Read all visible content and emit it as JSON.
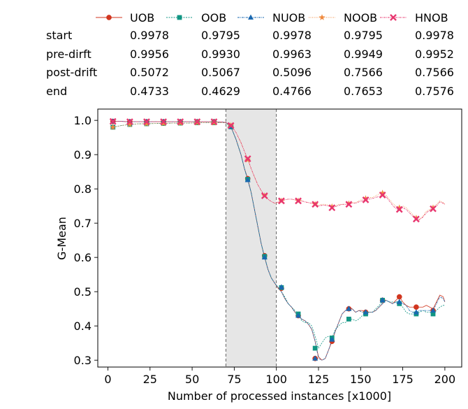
{
  "chart_data": {
    "type": "line",
    "xlabel": "Number of processed instances [x1000]",
    "ylabel": "G-Mean",
    "xlim": [
      -6,
      210
    ],
    "ylim": [
      0.28,
      1.033
    ],
    "xticks": [
      0,
      25,
      50,
      75,
      100,
      125,
      150,
      175,
      200
    ],
    "xtick_labels": [
      "0",
      "25",
      "50",
      "75",
      "100",
      "125",
      "150",
      "175",
      "200"
    ],
    "yticks": [
      0.3,
      0.4,
      0.5,
      0.6,
      0.7,
      0.8,
      0.9,
      1.0
    ],
    "ytick_labels": [
      "0.3",
      "0.4",
      "0.5",
      "0.6",
      "0.7",
      "0.8",
      "0.9",
      "1.0"
    ],
    "drift_region": [
      70,
      100
    ],
    "legend_position": "top",
    "series": [
      {
        "name": "UOB",
        "color": "#d1361f",
        "marker": "circle",
        "dash": "",
        "line_x": [
          3,
          8,
          13,
          18,
          23,
          28,
          33,
          38,
          43,
          48,
          53,
          58,
          63,
          68,
          70,
          73,
          76,
          79,
          81,
          83,
          85,
          87,
          89,
          91,
          93,
          95,
          97,
          99,
          101,
          103,
          105,
          107,
          109,
          111,
          113,
          115,
          117,
          119,
          121,
          123,
          125,
          127,
          129,
          131,
          133,
          135,
          137,
          139,
          141,
          143,
          145,
          147,
          149,
          151,
          153,
          155,
          157,
          159,
          161,
          163,
          165,
          167,
          169,
          171,
          173,
          175,
          177,
          179,
          181,
          183,
          185,
          187,
          189,
          191,
          193,
          195,
          197,
          199,
          200
        ],
        "line_y": [
          0.997,
          0.997,
          0.996,
          0.996,
          0.996,
          0.996,
          0.996,
          0.996,
          0.996,
          0.996,
          0.996,
          0.996,
          0.996,
          0.995,
          0.994,
          0.982,
          0.945,
          0.9,
          0.86,
          0.83,
          0.79,
          0.74,
          0.69,
          0.64,
          0.6,
          0.565,
          0.54,
          0.525,
          0.51,
          0.5,
          0.48,
          0.465,
          0.455,
          0.44,
          0.43,
          0.42,
          0.415,
          0.405,
          0.39,
          0.355,
          0.31,
          0.3,
          0.305,
          0.33,
          0.355,
          0.385,
          0.41,
          0.435,
          0.445,
          0.45,
          0.45,
          0.44,
          0.445,
          0.445,
          0.44,
          0.44,
          0.44,
          0.445,
          0.455,
          0.465,
          0.475,
          0.47,
          0.465,
          0.475,
          0.485,
          0.47,
          0.46,
          0.455,
          0.455,
          0.455,
          0.455,
          0.455,
          0.46,
          0.455,
          0.45,
          0.47,
          0.49,
          0.485,
          0.47
        ],
        "marker_x": [
          3,
          13,
          23,
          33,
          43,
          53,
          63,
          73,
          83,
          93,
          103,
          113,
          123,
          133,
          143,
          153,
          163,
          173,
          183,
          193
        ],
        "marker_y": [
          0.997,
          0.996,
          0.996,
          0.996,
          0.996,
          0.996,
          0.996,
          0.982,
          0.83,
          0.605,
          0.51,
          0.43,
          0.305,
          0.355,
          0.45,
          0.44,
          0.475,
          0.485,
          0.455,
          0.445
        ]
      },
      {
        "name": "OOB",
        "color": "#119583",
        "marker": "square",
        "dash": "2 1.5",
        "line_x": [
          3,
          8,
          13,
          18,
          23,
          28,
          33,
          38,
          43,
          48,
          53,
          58,
          63,
          68,
          70,
          73,
          76,
          79,
          81,
          83,
          85,
          87,
          89,
          91,
          93,
          95,
          97,
          99,
          101,
          103,
          105,
          107,
          109,
          111,
          113,
          115,
          117,
          119,
          121,
          123,
          125,
          127,
          129,
          131,
          133,
          135,
          137,
          139,
          141,
          143,
          145,
          147,
          149,
          151,
          153,
          155,
          157,
          159,
          161,
          163,
          165,
          167,
          169,
          171,
          173,
          175,
          177,
          179,
          181,
          183,
          185,
          187,
          189,
          191,
          193,
          195,
          197,
          199,
          200
        ],
        "line_y": [
          0.98,
          0.985,
          0.988,
          0.99,
          0.99,
          0.991,
          0.991,
          0.992,
          0.992,
          0.992,
          0.993,
          0.993,
          0.993,
          0.993,
          0.993,
          0.981,
          0.945,
          0.9,
          0.86,
          0.828,
          0.79,
          0.74,
          0.69,
          0.64,
          0.603,
          0.565,
          0.54,
          0.525,
          0.512,
          0.5,
          0.485,
          0.465,
          0.455,
          0.445,
          0.435,
          0.415,
          0.41,
          0.41,
          0.4,
          0.37,
          0.335,
          0.35,
          0.365,
          0.37,
          0.365,
          0.39,
          0.4,
          0.41,
          0.41,
          0.42,
          0.42,
          0.415,
          0.42,
          0.43,
          0.435,
          0.44,
          0.44,
          0.45,
          0.46,
          0.47,
          0.475,
          0.47,
          0.47,
          0.468,
          0.465,
          0.455,
          0.44,
          0.435,
          0.435,
          0.435,
          0.44,
          0.445,
          0.44,
          0.44,
          0.435,
          0.445,
          0.455,
          0.46,
          0.46
        ],
        "marker_x": [
          3,
          13,
          23,
          33,
          43,
          53,
          63,
          73,
          83,
          93,
          103,
          113,
          123,
          133,
          143,
          153,
          163,
          173,
          183,
          193
        ],
        "marker_y": [
          0.98,
          0.988,
          0.99,
          0.991,
          0.992,
          0.993,
          0.993,
          0.981,
          0.828,
          0.603,
          0.512,
          0.435,
          0.335,
          0.365,
          0.42,
          0.435,
          0.475,
          0.465,
          0.435,
          0.435
        ]
      },
      {
        "name": "NUOB",
        "color": "#1a68b0",
        "marker": "triangle",
        "dash": "3 1 1 1",
        "line_x": [
          3,
          8,
          13,
          18,
          23,
          28,
          33,
          38,
          43,
          48,
          53,
          58,
          63,
          68,
          70,
          73,
          76,
          79,
          81,
          83,
          85,
          87,
          89,
          91,
          93,
          95,
          97,
          99,
          101,
          103,
          105,
          107,
          109,
          111,
          113,
          115,
          117,
          119,
          121,
          123,
          125,
          127,
          129,
          131,
          133,
          135,
          137,
          139,
          141,
          143,
          145,
          147,
          149,
          151,
          153,
          155,
          157,
          159,
          161,
          163,
          165,
          167,
          169,
          171,
          173,
          175,
          177,
          179,
          181,
          183,
          185,
          187,
          189,
          191,
          193,
          195,
          197,
          199,
          200
        ],
        "line_y": [
          0.997,
          0.997,
          0.996,
          0.996,
          0.996,
          0.996,
          0.996,
          0.996,
          0.996,
          0.996,
          0.996,
          0.996,
          0.996,
          0.995,
          0.994,
          0.982,
          0.945,
          0.9,
          0.86,
          0.826,
          0.79,
          0.74,
          0.69,
          0.64,
          0.6,
          0.565,
          0.54,
          0.525,
          0.513,
          0.5,
          0.48,
          0.465,
          0.455,
          0.44,
          0.43,
          0.42,
          0.415,
          0.405,
          0.39,
          0.355,
          0.305,
          0.3,
          0.305,
          0.33,
          0.36,
          0.385,
          0.41,
          0.435,
          0.445,
          0.45,
          0.45,
          0.44,
          0.445,
          0.44,
          0.44,
          0.44,
          0.44,
          0.445,
          0.455,
          0.465,
          0.475,
          0.47,
          0.465,
          0.47,
          0.47,
          0.465,
          0.46,
          0.445,
          0.44,
          0.44,
          0.445,
          0.445,
          0.445,
          0.445,
          0.445,
          0.465,
          0.485,
          0.48,
          0.47
        ],
        "marker_x": [
          3,
          13,
          23,
          33,
          43,
          53,
          63,
          73,
          83,
          93,
          103,
          113,
          123,
          133,
          143,
          153,
          163,
          173,
          183,
          193
        ],
        "marker_y": [
          0.997,
          0.996,
          0.996,
          0.996,
          0.996,
          0.996,
          0.996,
          0.982,
          0.826,
          0.6,
          0.513,
          0.43,
          0.305,
          0.36,
          0.45,
          0.44,
          0.475,
          0.47,
          0.44,
          0.445
        ]
      },
      {
        "name": "NOOB",
        "color": "#f08a3e",
        "marker": "star",
        "dash": "1 1.5",
        "line_x": [
          3,
          8,
          13,
          18,
          23,
          28,
          33,
          38,
          43,
          48,
          53,
          58,
          63,
          68,
          70,
          73,
          76,
          79,
          81,
          83,
          85,
          87,
          89,
          91,
          93,
          95,
          97,
          99,
          101,
          103,
          105,
          107,
          109,
          111,
          113,
          115,
          117,
          119,
          121,
          123,
          125,
          127,
          129,
          131,
          133,
          135,
          137,
          139,
          141,
          143,
          145,
          147,
          149,
          151,
          153,
          155,
          157,
          159,
          161,
          163,
          165,
          167,
          169,
          171,
          173,
          175,
          177,
          179,
          181,
          183,
          185,
          187,
          189,
          191,
          193,
          195,
          197,
          199,
          200
        ],
        "line_y": [
          0.98,
          0.985,
          0.988,
          0.99,
          0.99,
          0.991,
          0.991,
          0.992,
          0.992,
          0.992,
          0.993,
          0.993,
          0.993,
          0.993,
          0.993,
          0.985,
          0.965,
          0.935,
          0.91,
          0.885,
          0.858,
          0.835,
          0.812,
          0.795,
          0.78,
          0.77,
          0.763,
          0.758,
          0.76,
          0.765,
          0.768,
          0.77,
          0.77,
          0.768,
          0.765,
          0.765,
          0.762,
          0.76,
          0.758,
          0.755,
          0.752,
          0.755,
          0.755,
          0.752,
          0.748,
          0.75,
          0.755,
          0.755,
          0.755,
          0.757,
          0.76,
          0.76,
          0.765,
          0.77,
          0.772,
          0.775,
          0.775,
          0.78,
          0.785,
          0.788,
          0.782,
          0.77,
          0.758,
          0.748,
          0.745,
          0.75,
          0.745,
          0.735,
          0.725,
          0.715,
          0.712,
          0.72,
          0.735,
          0.74,
          0.745,
          0.755,
          0.765,
          0.76,
          0.755
        ],
        "marker_x": [
          3,
          13,
          23,
          33,
          43,
          53,
          63,
          73,
          83,
          93,
          103,
          113,
          123,
          133,
          143,
          153,
          163,
          173,
          183,
          193
        ],
        "marker_y": [
          0.98,
          0.988,
          0.99,
          0.991,
          0.992,
          0.993,
          0.993,
          0.985,
          0.885,
          0.78,
          0.765,
          0.765,
          0.755,
          0.748,
          0.757,
          0.772,
          0.788,
          0.745,
          0.715,
          0.745
        ]
      },
      {
        "name": "HNOB",
        "color": "#e8366f",
        "marker": "x",
        "dash": "2.5 1 1 1",
        "line_x": [
          3,
          8,
          13,
          18,
          23,
          28,
          33,
          38,
          43,
          48,
          53,
          58,
          63,
          68,
          70,
          73,
          76,
          79,
          81,
          83,
          85,
          87,
          89,
          91,
          93,
          95,
          97,
          99,
          101,
          103,
          105,
          107,
          109,
          111,
          113,
          115,
          117,
          119,
          121,
          123,
          125,
          127,
          129,
          131,
          133,
          135,
          137,
          139,
          141,
          143,
          145,
          147,
          149,
          151,
          153,
          155,
          157,
          159,
          161,
          163,
          165,
          167,
          169,
          171,
          173,
          175,
          177,
          179,
          181,
          183,
          185,
          187,
          189,
          191,
          193,
          195,
          197,
          199,
          200
        ],
        "line_y": [
          0.997,
          0.997,
          0.996,
          0.996,
          0.996,
          0.996,
          0.996,
          0.996,
          0.996,
          0.996,
          0.996,
          0.996,
          0.996,
          0.995,
          0.994,
          0.985,
          0.965,
          0.935,
          0.91,
          0.888,
          0.86,
          0.835,
          0.812,
          0.795,
          0.78,
          0.77,
          0.763,
          0.758,
          0.762,
          0.765,
          0.768,
          0.77,
          0.77,
          0.768,
          0.765,
          0.765,
          0.762,
          0.76,
          0.758,
          0.755,
          0.75,
          0.752,
          0.752,
          0.75,
          0.745,
          0.748,
          0.752,
          0.755,
          0.755,
          0.755,
          0.758,
          0.758,
          0.762,
          0.765,
          0.768,
          0.77,
          0.772,
          0.775,
          0.778,
          0.782,
          0.778,
          0.765,
          0.752,
          0.742,
          0.74,
          0.745,
          0.74,
          0.73,
          0.72,
          0.712,
          0.71,
          0.718,
          0.73,
          0.738,
          0.742,
          0.75,
          0.762,
          0.758,
          0.755
        ],
        "marker_x": [
          3,
          13,
          23,
          33,
          43,
          53,
          63,
          73,
          83,
          93,
          103,
          113,
          123,
          133,
          143,
          153,
          163,
          173,
          183,
          193
        ],
        "marker_y": [
          0.997,
          0.996,
          0.996,
          0.996,
          0.996,
          0.996,
          0.996,
          0.985,
          0.888,
          0.78,
          0.765,
          0.765,
          0.755,
          0.745,
          0.755,
          0.768,
          0.782,
          0.74,
          0.712,
          0.742
        ]
      }
    ]
  },
  "legend": {
    "entries": [
      "UOB",
      "OOB",
      "NUOB",
      "NOOB",
      "HNOB"
    ]
  },
  "summary_table": {
    "rows": [
      {
        "label": "start",
        "values": [
          "0.9978",
          "0.9795",
          "0.9978",
          "0.9795",
          "0.9978"
        ]
      },
      {
        "label": "pre-dirft",
        "values": [
          "0.9956",
          "0.9930",
          "0.9963",
          "0.9949",
          "0.9952"
        ]
      },
      {
        "label": "post-drift",
        "values": [
          "0.5072",
          "0.5067",
          "0.5096",
          "0.7566",
          "0.7566"
        ]
      },
      {
        "label": "end",
        "values": [
          "0.4733",
          "0.4629",
          "0.4766",
          "0.7653",
          "0.7576"
        ]
      }
    ]
  }
}
